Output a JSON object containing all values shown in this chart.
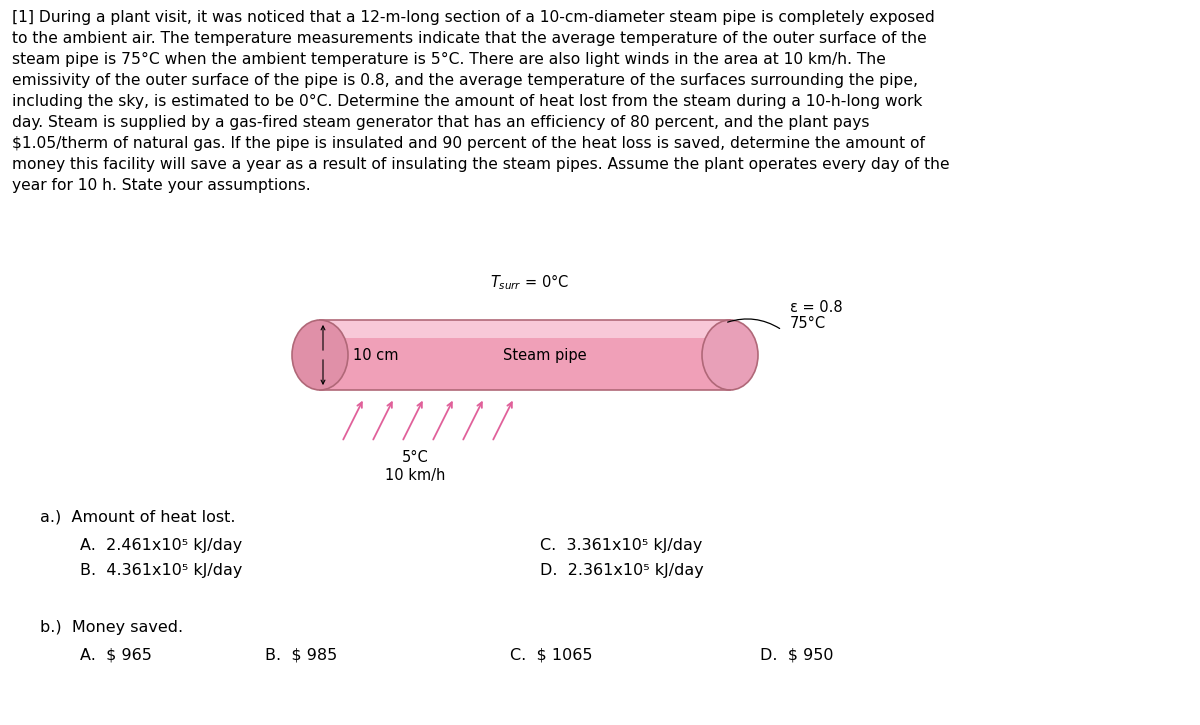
{
  "background_color": "#ffffff",
  "paragraph_text": "[1] During a plant visit, it was noticed that a 12-m-long section of a 10-cm-diameter steam pipe is completely exposed\nto the ambient air. The temperature measurements indicate that the average temperature of the outer surface of the\nsteam pipe is 75°C when the ambient temperature is 5°C. There are also light winds in the area at 10 km/h. The\nemissivity of the outer surface of the pipe is 0.8, and the average temperature of the surfaces surrounding the pipe,\nincluding the sky, is estimated to be 0°C. Determine the amount of heat lost from the steam during a 10-h-long work\nday. Steam is supplied by a gas-fired steam generator that has an efficiency of 80 percent, and the plant pays\n$1.05/therm of natural gas. If the pipe is insulated and 90 percent of the heat loss is saved, determine the amount of\nmoney this facility will save a year as a result of insulating the steam pipes. Assume the plant operates every day of the\nyear for 10 h. State your assumptions.",
  "diagram_tsurr_label": "$T_{surr}$ = 0°C",
  "diagram_epsilon_label": "ε = 0.8",
  "diagram_temp_label": "75°C",
  "diagram_10cm_label": "10 cm",
  "diagram_steam_pipe_label": "Steam pipe",
  "diagram_wind_temp": "5°C",
  "diagram_wind_speed": "10 km/h",
  "pipe_fill_color": "#f0a0b8",
  "pipe_top_color": "#f8c8d8",
  "pipe_edge_color": "#b06878",
  "pipe_ellipse_fill": "#e090a8",
  "pipe_ellipse_right_fill": "#e8a0b8",
  "arrow_color": "#e0609a",
  "qa_label": "a.)  Amount of heat lost.",
  "qa_A": "A.  2.461x10⁵ kJ/day",
  "qa_B": "B.  4.361x10⁵ kJ/day",
  "qa_C": "C.  3.361x10⁵ kJ/day",
  "qa_D": "D.  2.361x10⁵ kJ/day",
  "qb_label": "b.)  Money saved.",
  "qb_A": "A.  $ 965",
  "qb_B": "B.  $ 985",
  "qb_C": "C.  $ 1065",
  "qb_D": "D.  $ 950",
  "font_size_para": 11.2,
  "font_size_diagram": 10.5,
  "font_size_qa": 11.5
}
